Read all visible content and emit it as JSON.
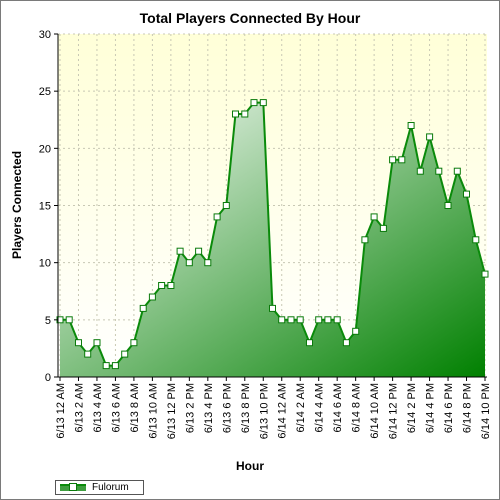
{
  "chart_data": {
    "type": "area",
    "title": "Total Players Connected By Hour",
    "xlabel": "Hour",
    "ylabel": "Players Connected",
    "ylim": [
      0,
      30
    ],
    "yticks": [
      0,
      5,
      10,
      15,
      20,
      25,
      30
    ],
    "grid": true,
    "legend_position": "bottom-left",
    "colors": {
      "line": "#0a8a0a",
      "fill_light": "#e6f2e6",
      "fill_dark": "#008000",
      "plot_bg_top": "#ffffd8",
      "plot_bg_bottom": "#ffffff"
    },
    "categories": [
      "6/13 12 AM",
      "6/13 1 AM",
      "6/13 2 AM",
      "6/13 3 AM",
      "6/13 4 AM",
      "6/13 5 AM",
      "6/13 6 AM",
      "6/13 7 AM",
      "6/13 8 AM",
      "6/13 9 AM",
      "6/13 10 AM",
      "6/13 11 AM",
      "6/13 12 PM",
      "6/13 1 PM",
      "6/13 2 PM",
      "6/13 3 PM",
      "6/13 4 PM",
      "6/13 5 PM",
      "6/13 6 PM",
      "6/13 7 PM",
      "6/13 8 PM",
      "6/13 9 PM",
      "6/13 10 PM",
      "6/13 11 PM",
      "6/14 12 AM",
      "6/14 1 AM",
      "6/14 2 AM",
      "6/14 3 AM",
      "6/14 4 AM",
      "6/14 5 AM",
      "6/14 6 AM",
      "6/14 7 AM",
      "6/14 8 AM",
      "6/14 9 AM",
      "6/14 10 AM",
      "6/14 11 AM",
      "6/14 12 PM",
      "6/14 1 PM",
      "6/14 2 PM",
      "6/14 3 PM",
      "6/14 4 PM",
      "6/14 5 PM",
      "6/14 6 PM",
      "6/14 7 PM",
      "6/14 8 PM",
      "6/14 9 PM",
      "6/14 10 PM"
    ],
    "xtick_labels": [
      "6/13 12 AM",
      "6/13 2 AM",
      "6/13 4 AM",
      "6/13 6 AM",
      "6/13 8 AM",
      "6/13 10 AM",
      "6/13 12 PM",
      "6/13 2 PM",
      "6/13 4 PM",
      "6/13 6 PM",
      "6/13 8 PM",
      "6/13 10 PM",
      "6/14 12 AM",
      "6/14 2 AM",
      "6/14 4 AM",
      "6/14 6 AM",
      "6/14 8 AM",
      "6/14 10 AM",
      "6/14 12 PM",
      "6/14 2 PM",
      "6/14 4 PM",
      "6/14 6 PM",
      "6/14 8 PM",
      "6/14 10 PM"
    ],
    "series": [
      {
        "name": "Fulorum",
        "values": [
          5,
          5,
          3,
          2,
          3,
          1,
          1,
          2,
          3,
          6,
          7,
          8,
          8,
          11,
          10,
          11,
          10,
          14,
          15,
          23,
          23,
          24,
          24,
          6,
          5,
          5,
          5,
          3,
          5,
          5,
          5,
          3,
          4,
          12,
          14,
          13,
          19,
          19,
          22,
          18,
          21,
          18,
          15,
          18,
          16,
          12,
          9
        ]
      }
    ]
  }
}
